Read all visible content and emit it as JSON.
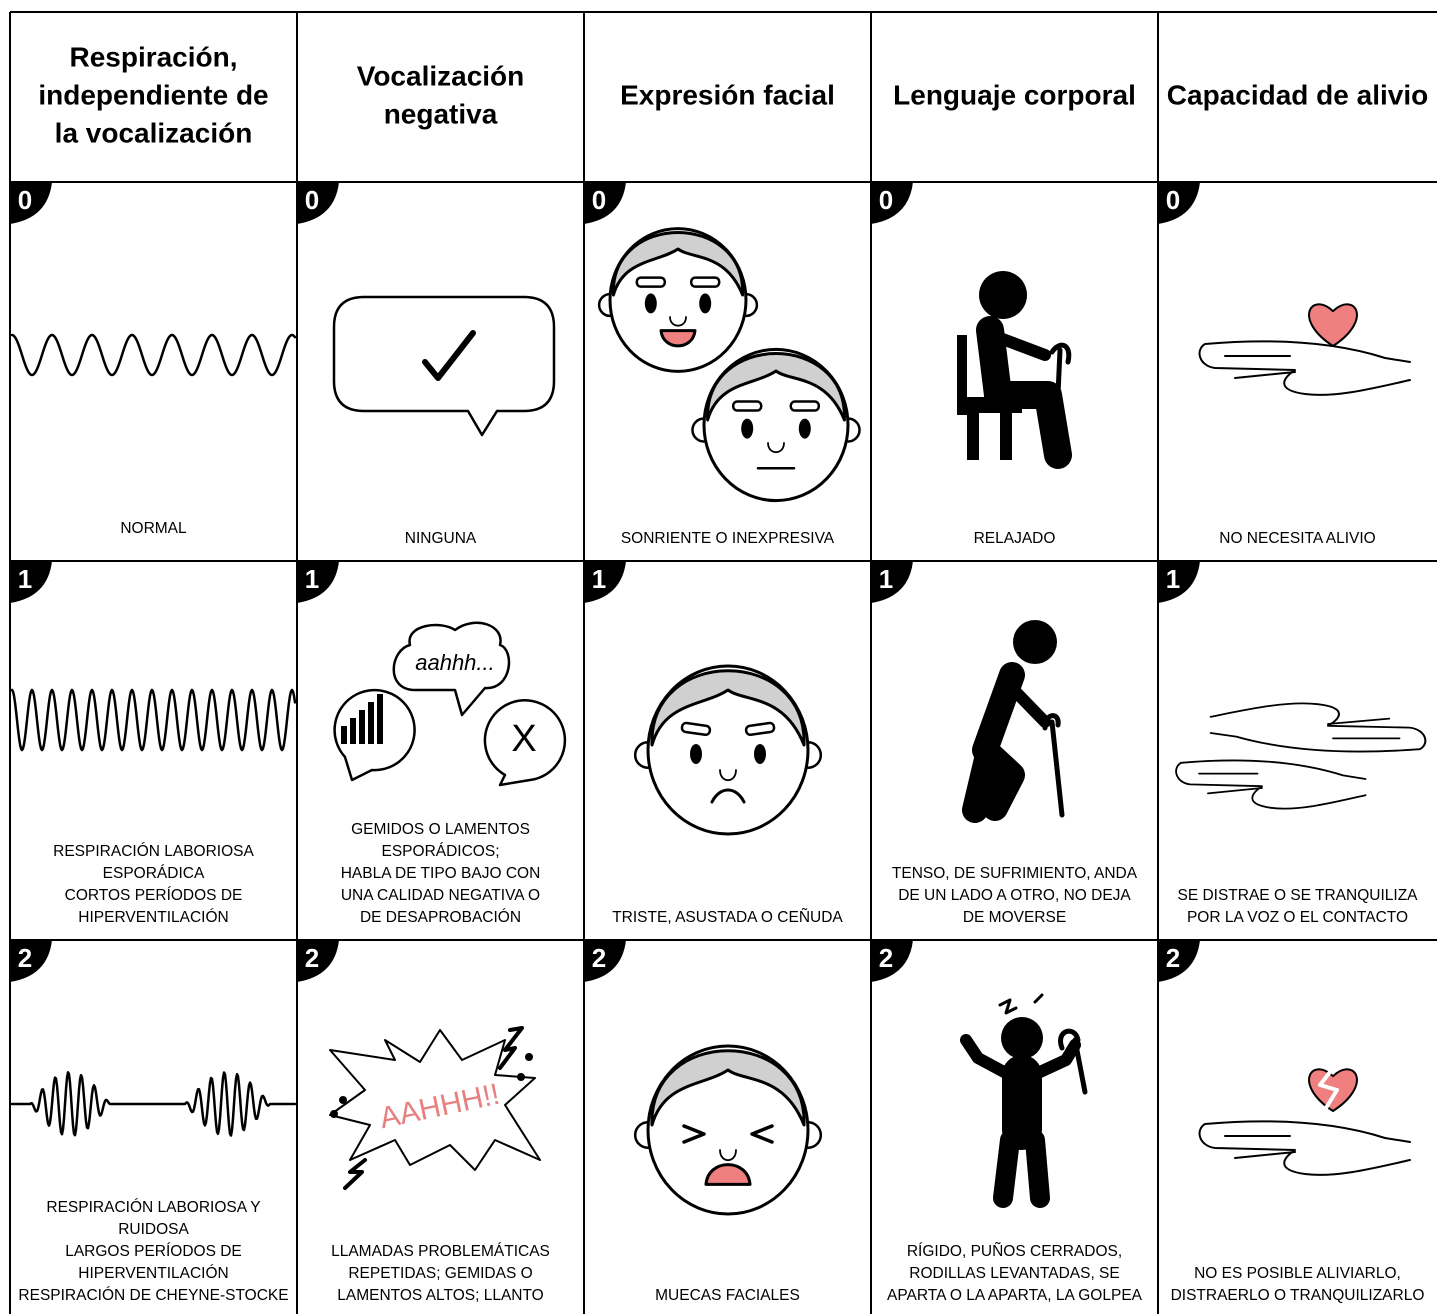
{
  "header": {
    "columns": [
      [
        "Respiración,",
        "independiente de",
        "la vocalización"
      ],
      [
        "Vocalización",
        "negativa"
      ],
      [
        "Expresión facial"
      ],
      [
        "Lenguaje corporal"
      ],
      [
        "Capacidad de alivio"
      ]
    ]
  },
  "rows": [
    {
      "score": 0,
      "cells": [
        {
          "lines": [
            "NORMAL"
          ]
        },
        {
          "lines": [
            "NINGUNA"
          ]
        },
        {
          "lines": [
            "SONRIENTE O INEXPRESIVA"
          ]
        },
        {
          "lines": [
            "RELAJADO"
          ]
        },
        {
          "lines": [
            "NO NECESITA ALIVIO"
          ]
        }
      ]
    },
    {
      "score": 1,
      "cells": [
        {
          "lines": [
            "RESPIRACIÓN LABORIOSA",
            "ESPORÁDICA",
            "CORTOS PERÍODOS DE",
            "HIPERVENTILACIÓN"
          ]
        },
        {
          "lines": [
            "GEMIDOS O LAMENTOS",
            "ESPORÁDICOS;",
            "HABLA DE TIPO BAJO CON",
            "UNA CALIDAD NEGATIVA O",
            "DE DESAPROBACIÓN"
          ],
          "bubble_texts": [
            "aahhh...",
            "X"
          ]
        },
        {
          "lines": [
            "TRISTE, ASUSTADA O CEÑUDA"
          ]
        },
        {
          "lines": [
            "TENSO, DE SUFRIMIENTO, ANDA",
            "DE UN LADO A OTRO, NO DEJA",
            "DE MOVERSE"
          ]
        },
        {
          "lines": [
            "SE DISTRAE O SE TRANQUILIZA",
            "POR LA VOZ O EL CONTACTO"
          ]
        }
      ]
    },
    {
      "score": 2,
      "cells": [
        {
          "lines": [
            "RESPIRACIÓN LABORIOSA Y",
            "RUIDOSA",
            "LARGOS PERÍODOS DE",
            "HIPERVENTILACIÓN",
            "RESPIRACIÓN DE CHEYNE-STOCKE"
          ]
        },
        {
          "lines": [
            "LLAMADAS PROBLEMÁTICAS",
            "REPETIDAS; GEMIDAS O",
            "LAMENTOS ALTOS; LLANTO"
          ],
          "burst_text": "AAHHH!!"
        },
        {
          "lines": [
            "MUECAS FACIALES"
          ]
        },
        {
          "lines": [
            "RÍGIDO, PUÑOS CERRADOS,",
            "RODILLAS LEVANTADAS, SE",
            "APARTA O LA APARTA, LA GOLPEA"
          ]
        },
        {
          "lines": [
            "NO ES POSIBLE ALIVIARLO,",
            "DISTRAERLO O TRANQUILIZARLO"
          ]
        }
      ]
    }
  ]
}
